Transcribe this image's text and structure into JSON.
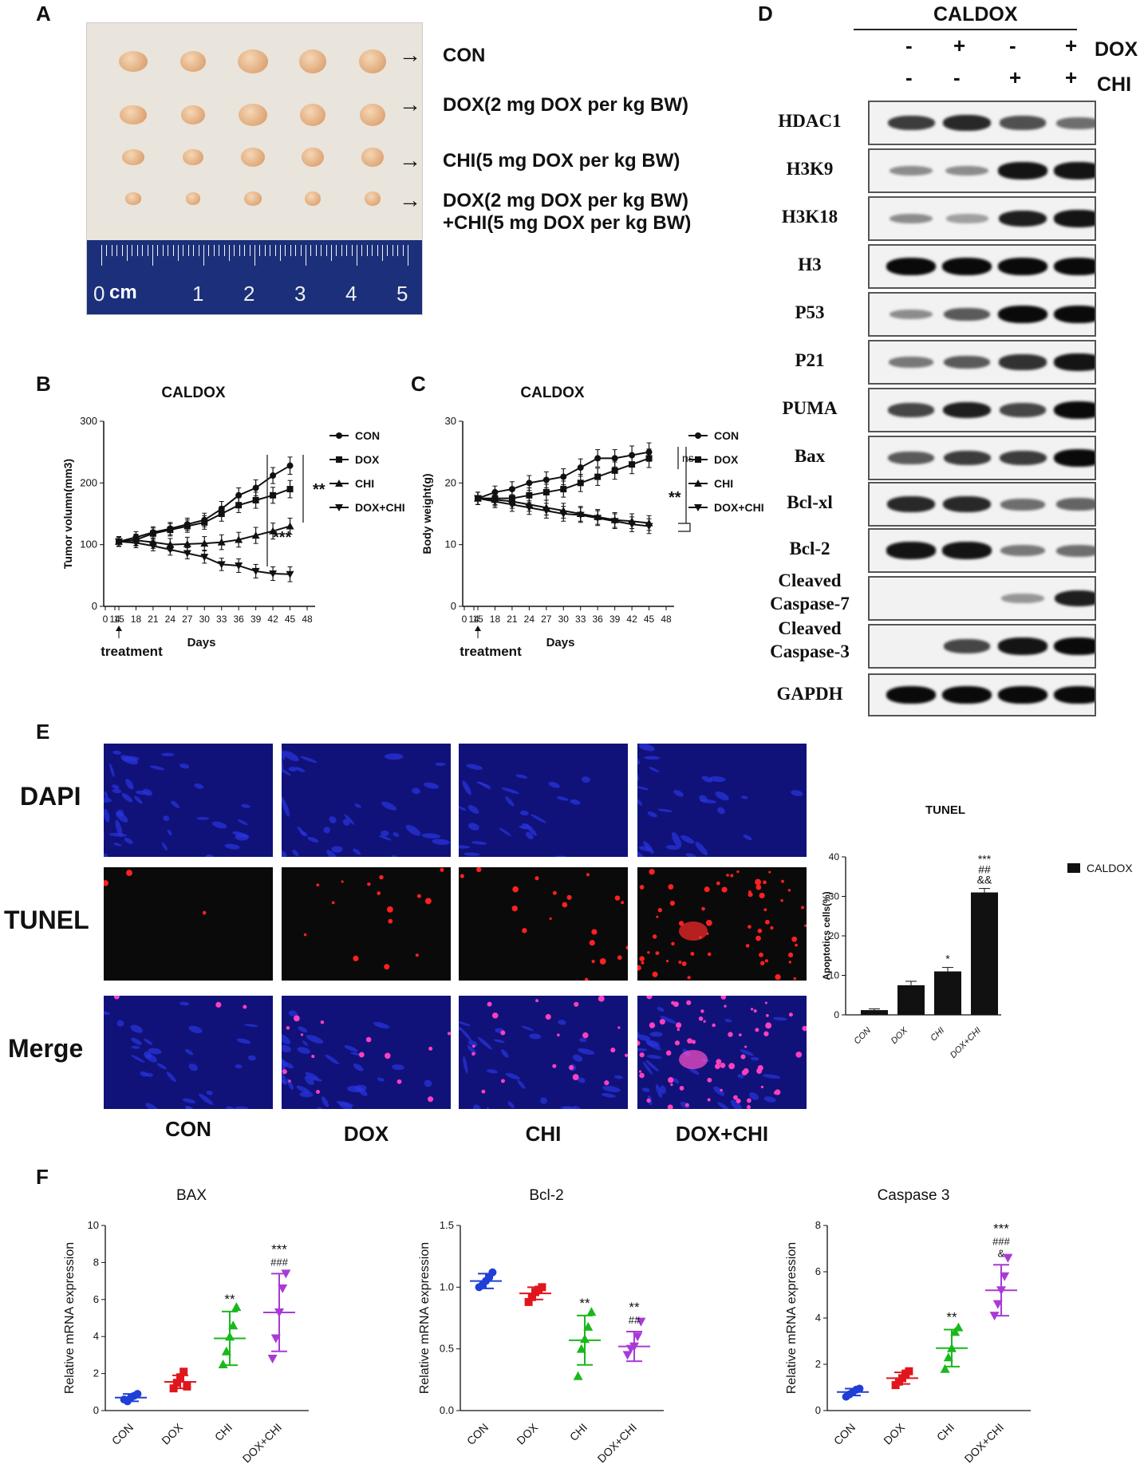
{
  "panels": {
    "A": "A",
    "B": "B",
    "C": "C",
    "D": "D",
    "E": "E",
    "F": "F"
  },
  "panelA": {
    "rows": [
      "CON",
      "DOX(2 mg DOX per kg BW)",
      "CHI(5 mg DOX per kg BW)",
      "DOX(2 mg DOX per kg BW)\n+CHI(5 mg DOX per kg BW)"
    ],
    "ruler_unit": "cm",
    "ruler_numbers": [
      "0",
      "1",
      "2",
      "3",
      "4",
      "5"
    ],
    "arrow": "→"
  },
  "panelB": {
    "title": "CALDOX",
    "ylabel": "Tumor volumn(mm3)",
    "xlabel": "Days",
    "treatment": "treatment",
    "sig": [
      "**",
      "***"
    ]
  },
  "panelC": {
    "title": "CALDOX",
    "ylabel": "Body weight(g)",
    "xlabel": "Days",
    "treatment": "treatment",
    "sig": [
      "ns",
      "**"
    ]
  },
  "panelD": {
    "title": "CALDOX",
    "dox_label": "DOX",
    "chi_label": "CHI",
    "dox_signs": [
      "-",
      "+",
      "-",
      "+"
    ],
    "chi_signs": [
      "-",
      "-",
      "+",
      "+"
    ],
    "proteins": [
      "HDAC1",
      "H3K9",
      "H3K18",
      "H3",
      "P53",
      "P21",
      "PUMA",
      "Bax",
      "Bcl-xl",
      "Bcl-2",
      "Cleaved\nCaspase-7",
      "Cleaved\nCaspase-3",
      "GAPDH"
    ],
    "band_intensity": [
      [
        0.75,
        0.85,
        0.65,
        0.5
      ],
      [
        0.35,
        0.35,
        0.95,
        0.95
      ],
      [
        0.35,
        0.25,
        0.9,
        0.95
      ],
      [
        1,
        1,
        1,
        1
      ],
      [
        0.35,
        0.6,
        1,
        1
      ],
      [
        0.45,
        0.6,
        0.8,
        0.95
      ],
      [
        0.7,
        0.9,
        0.7,
        1
      ],
      [
        0.6,
        0.75,
        0.75,
        1
      ],
      [
        0.85,
        0.85,
        0.5,
        0.55
      ],
      [
        0.95,
        0.95,
        0.45,
        0.5
      ],
      [
        0,
        0,
        0.3,
        0.9
      ],
      [
        0,
        0.7,
        0.95,
        1
      ],
      [
        1,
        1,
        1,
        1
      ]
    ]
  },
  "panelE": {
    "row_labels": [
      "DAPI",
      "TUNEL",
      "Merge"
    ],
    "groups": [
      "CON",
      "DOX",
      "CHI",
      "DOX+CHI"
    ]
  },
  "panelF": {
    "ylabel": "Relative mRNA expression",
    "colors": [
      "#1f3fd6",
      "#e0161c",
      "#19b81b",
      "#a93ad6"
    ]
  },
  "chart_data": [
    {
      "type": "line",
      "title": "CALDOX",
      "xlabel": "Days",
      "ylabel": "Tumor volumn(mm3)",
      "x": [
        15,
        18,
        21,
        24,
        27,
        30,
        33,
        36,
        39,
        42,
        45
      ],
      "xticks": [
        "0",
        "14",
        "15",
        "18",
        "21",
        "24",
        "27",
        "30",
        "33",
        "36",
        "39",
        "42",
        "45",
        "48"
      ],
      "ylim": [
        0,
        300
      ],
      "yticks": [
        0,
        100,
        200,
        300
      ],
      "legend": "right",
      "series": [
        {
          "name": "CON",
          "marker": "circle",
          "values": [
            105,
            112,
            120,
            126,
            133,
            140,
            158,
            180,
            192,
            212,
            228
          ],
          "err": [
            8,
            9,
            9,
            10,
            10,
            11,
            12,
            12,
            13,
            13,
            14
          ]
        },
        {
          "name": "DOX",
          "marker": "square",
          "values": [
            105,
            108,
            118,
            124,
            130,
            136,
            150,
            164,
            172,
            180,
            190
          ],
          "err": [
            8,
            9,
            9,
            10,
            10,
            11,
            12,
            12,
            13,
            13,
            14
          ]
        },
        {
          "name": "CHI",
          "marker": "triangle",
          "values": [
            105,
            107,
            104,
            100,
            101,
            102,
            104,
            108,
            115,
            122,
            130
          ],
          "err": [
            8,
            9,
            10,
            10,
            11,
            11,
            12,
            12,
            13,
            13,
            13
          ]
        },
        {
          "name": "DOX+CHI",
          "marker": "triangle-down",
          "values": [
            105,
            103,
            98,
            92,
            86,
            80,
            68,
            66,
            57,
            53,
            52
          ],
          "err": [
            7,
            8,
            8,
            9,
            9,
            10,
            10,
            11,
            11,
            11,
            12
          ]
        }
      ]
    },
    {
      "type": "line",
      "title": "CALDOX",
      "xlabel": "Days",
      "ylabel": "Body weight(g)",
      "x": [
        15,
        18,
        21,
        24,
        27,
        30,
        33,
        36,
        39,
        42,
        45
      ],
      "xticks": [
        "0",
        "14",
        "15",
        "18",
        "21",
        "24",
        "27",
        "30",
        "33",
        "36",
        "39",
        "42",
        "45",
        "48"
      ],
      "ylim": [
        0,
        30
      ],
      "yticks": [
        0,
        10,
        20,
        30
      ],
      "legend": "right",
      "series": [
        {
          "name": "CON",
          "marker": "circle",
          "values": [
            17.5,
            18.5,
            19,
            20,
            20.5,
            21,
            22.5,
            24,
            24,
            24.5,
            25
          ],
          "err": [
            1,
            1,
            1.2,
            1.2,
            1.3,
            1.3,
            1.4,
            1.4,
            1.4,
            1.5,
            1.5
          ]
        },
        {
          "name": "DOX",
          "marker": "square",
          "values": [
            17.5,
            17.5,
            17.5,
            18,
            18.5,
            19,
            20,
            21,
            22,
            23,
            24
          ],
          "err": [
            1,
            1,
            1.2,
            1.2,
            1.3,
            1.3,
            1.4,
            1.4,
            1.4,
            1.5,
            1.5
          ]
        },
        {
          "name": "CHI",
          "marker": "triangle",
          "values": [
            17.5,
            17.3,
            17,
            16.5,
            16,
            15.5,
            15,
            14.5,
            14,
            13.8,
            13.5
          ],
          "err": [
            1,
            1,
            1.1,
            1.1,
            1.2,
            1.2,
            1.2,
            1.2,
            1.2,
            1.2,
            1.2
          ]
        },
        {
          "name": "DOX+CHI",
          "marker": "triangle-down",
          "values": [
            17.5,
            17,
            16.5,
            16,
            15.5,
            15,
            14.8,
            14.3,
            13.8,
            13.3,
            13
          ],
          "err": [
            1,
            1,
            1.1,
            1.1,
            1.2,
            1.2,
            1.2,
            1.2,
            1.2,
            1.2,
            1.2
          ]
        }
      ]
    },
    {
      "type": "bar",
      "title": "TUNEL",
      "ylabel": "Apoptotics cells(%)",
      "categories": [
        "CON",
        "DOX",
        "CHI",
        "DOX+CHI"
      ],
      "series": [
        {
          "name": "CALDOX",
          "values": [
            1.2,
            7.5,
            11,
            31
          ],
          "err": [
            0.3,
            1,
            1,
            1
          ]
        }
      ],
      "annotations": [
        "",
        "",
        "*",
        "***\n##\n&&"
      ],
      "ylim": [
        0,
        40
      ],
      "yticks": [
        0,
        10,
        20,
        30,
        40
      ],
      "legend": "right"
    },
    {
      "type": "scatter",
      "title": "BAX",
      "ylabel": "Relative mRNA expression",
      "categories": [
        "CON",
        "DOX",
        "CHI",
        "DOX+CHI"
      ],
      "points": [
        [
          0.6,
          0.5,
          0.7,
          0.8,
          0.9
        ],
        [
          1.2,
          1.5,
          1.8,
          2.1,
          1.3
        ],
        [
          2.5,
          3.2,
          4.0,
          4.6,
          5.6
        ],
        [
          2.8,
          3.9,
          5.3,
          6.6,
          7.4
        ]
      ],
      "mean": [
        0.7,
        1.55,
        3.9,
        5.3
      ],
      "sd": [
        0.2,
        0.35,
        1.45,
        2.1
      ],
      "annotations": [
        "",
        "",
        "**",
        "***\n###"
      ],
      "ylim": [
        0,
        10
      ],
      "yticks": [
        0,
        2,
        4,
        6,
        8,
        10
      ]
    },
    {
      "type": "scatter",
      "title": "Bcl-2",
      "ylabel": "Relative mRNA expression",
      "categories": [
        "CON",
        "DOX",
        "CHI",
        "DOX+CHI"
      ],
      "points": [
        [
          1.0,
          1.02,
          1.05,
          1.08,
          1.12
        ],
        [
          0.88,
          0.92,
          0.96,
          0.98,
          1.0
        ],
        [
          0.28,
          0.5,
          0.58,
          0.68,
          0.8
        ],
        [
          0.45,
          0.5,
          0.52,
          0.6,
          0.72
        ]
      ],
      "mean": [
        1.05,
        0.95,
        0.57,
        0.52
      ],
      "sd": [
        0.06,
        0.05,
        0.2,
        0.12
      ],
      "annotations": [
        "",
        "",
        "**",
        "**\n##"
      ],
      "ylim": [
        0,
        1.5
      ],
      "yticks": [
        0,
        0.5,
        1.0,
        1.5
      ]
    },
    {
      "type": "scatter",
      "title": "Caspase 3",
      "ylabel": "Relative mRNA expression",
      "categories": [
        "CON",
        "DOX",
        "CHI",
        "DOX+CHI"
      ],
      "points": [
        [
          0.6,
          0.7,
          0.8,
          0.9,
          0.95
        ],
        [
          1.1,
          1.25,
          1.4,
          1.6,
          1.7
        ],
        [
          1.8,
          2.3,
          2.7,
          3.4,
          3.6
        ],
        [
          4.1,
          4.6,
          5.2,
          5.8,
          6.6
        ]
      ],
      "mean": [
        0.8,
        1.4,
        2.7,
        5.2
      ],
      "sd": [
        0.15,
        0.25,
        0.8,
        1.1
      ],
      "annotations": [
        "",
        "",
        "**",
        "***\n###\n&"
      ],
      "ylim": [
        0,
        8
      ],
      "yticks": [
        0,
        2,
        4,
        6,
        8
      ]
    }
  ]
}
